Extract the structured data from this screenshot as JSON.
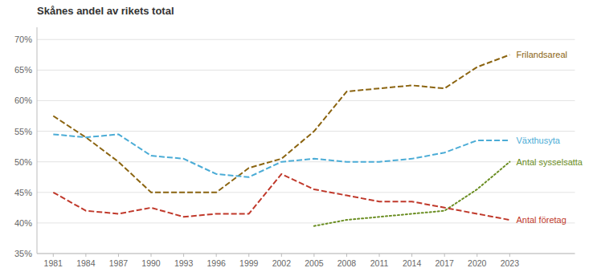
{
  "chart_data": {
    "type": "line",
    "title": "Skånes andel av rikets total",
    "x": [
      1981,
      1984,
      1987,
      1990,
      1993,
      1996,
      1999,
      2002,
      2005,
      2008,
      2011,
      2014,
      2017,
      2020,
      2023
    ],
    "series": [
      {
        "name": "Frilandsareal",
        "color": "#8B6410",
        "line_style": "dashed",
        "values": [
          57.5,
          54.0,
          50.0,
          45.0,
          45.0,
          45.0,
          49.0,
          50.5,
          55.0,
          61.5,
          62.0,
          62.5,
          62.0,
          65.5,
          67.5
        ]
      },
      {
        "name": "Växthusyta",
        "color": "#4BACD6",
        "line_style": "dashed",
        "values": [
          54.5,
          54.0,
          54.5,
          51.0,
          50.5,
          48.0,
          47.5,
          50.0,
          50.5,
          50.0,
          50.0,
          50.5,
          51.5,
          53.5,
          53.5
        ]
      },
      {
        "name": "Antal sysselsatta",
        "color": "#6B8E23",
        "line_style": "dotted",
        "values": [
          null,
          null,
          null,
          null,
          null,
          null,
          null,
          null,
          39.5,
          40.5,
          41.0,
          41.5,
          42.0,
          45.5,
          50.0
        ]
      },
      {
        "name": "Antal företag",
        "color": "#C0392B",
        "line_style": "dashed",
        "values": [
          45.0,
          42.0,
          41.5,
          42.5,
          41.0,
          41.5,
          41.5,
          48.0,
          45.5,
          44.5,
          43.5,
          43.5,
          42.5,
          41.5,
          40.5
        ]
      }
    ],
    "xlim": [
      1979.5,
      2029
    ],
    "xticks": [
      1981,
      1984,
      1987,
      1990,
      1993,
      1996,
      1999,
      2002,
      2005,
      2008,
      2011,
      2014,
      2017,
      2020,
      2023
    ],
    "ylim": [
      35,
      72
    ],
    "yticks": [
      {
        "value": 35,
        "label": "35%"
      },
      {
        "value": 40,
        "label": "40%"
      },
      {
        "value": 45,
        "label": "45%"
      },
      {
        "value": 50,
        "label": "50%"
      },
      {
        "value": 55,
        "label": "55%"
      },
      {
        "value": 60,
        "label": "60%"
      },
      {
        "value": 65,
        "label": "65%"
      },
      {
        "value": 70,
        "label": "70%"
      }
    ],
    "grid": true
  }
}
